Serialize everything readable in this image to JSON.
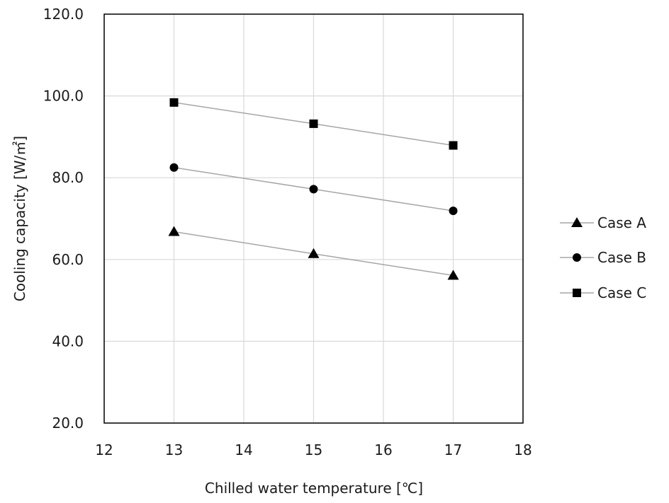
{
  "chart_data": {
    "type": "line",
    "xlabel": "Chilled water temperature  [℃]",
    "ylabel": "Cooling capacity [W/㎡]",
    "xlim": [
      12,
      18
    ],
    "ylim": [
      20,
      120
    ],
    "xticks": [
      12,
      13,
      14,
      15,
      16,
      17,
      18
    ],
    "yticks": [
      20,
      40,
      60,
      80,
      100,
      120
    ],
    "xtick_labels": [
      "12",
      "13",
      "14",
      "15",
      "16",
      "17",
      "18"
    ],
    "ytick_labels": [
      "20.0",
      "40.0",
      "60.0",
      "80.0",
      "100.0",
      "120.0"
    ],
    "grid": true,
    "legend_position": "right",
    "x": [
      13,
      15,
      17
    ],
    "series": [
      {
        "name": "Case A",
        "marker": "triangle",
        "values": [
          66.8,
          61.4,
          56.1
        ]
      },
      {
        "name": "Case B",
        "marker": "circle",
        "values": [
          82.5,
          77.2,
          71.9
        ]
      },
      {
        "name": "Case C",
        "marker": "square",
        "values": [
          98.4,
          93.2,
          87.9
        ]
      }
    ],
    "colors": {
      "line": "#a6a6a6",
      "marker": "#000000",
      "grid": "#d9d9d9",
      "frame": "#000000"
    }
  }
}
